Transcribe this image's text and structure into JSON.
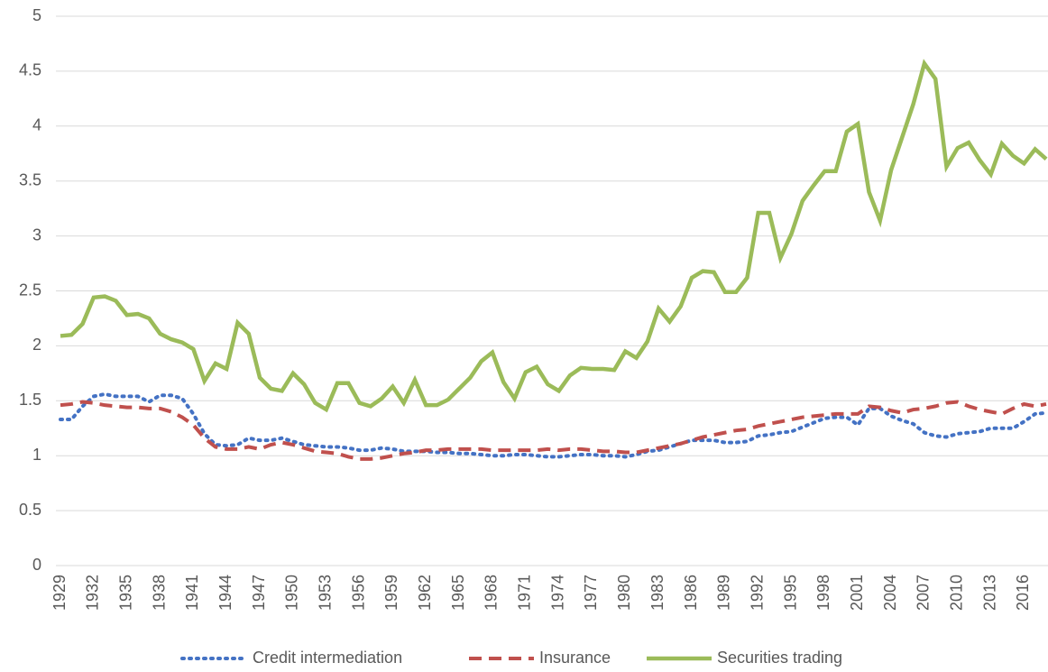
{
  "chart_data": {
    "type": "line",
    "x": [
      1929,
      1930,
      1931,
      1932,
      1933,
      1934,
      1935,
      1936,
      1937,
      1938,
      1939,
      1940,
      1941,
      1942,
      1943,
      1944,
      1945,
      1946,
      1947,
      1948,
      1949,
      1950,
      1951,
      1952,
      1953,
      1954,
      1955,
      1956,
      1957,
      1958,
      1959,
      1960,
      1961,
      1962,
      1963,
      1964,
      1965,
      1966,
      1967,
      1968,
      1969,
      1970,
      1971,
      1972,
      1973,
      1974,
      1975,
      1976,
      1977,
      1978,
      1979,
      1980,
      1981,
      1982,
      1983,
      1984,
      1985,
      1986,
      1987,
      1988,
      1989,
      1990,
      1991,
      1992,
      1993,
      1994,
      1995,
      1996,
      1997,
      1998,
      1999,
      2000,
      2001,
      2002,
      2003,
      2004,
      2005,
      2006,
      2007,
      2008,
      2009,
      2010,
      2011,
      2012,
      2013,
      2014,
      2015,
      2016,
      2017,
      2018
    ],
    "xlim": [
      1929,
      2018
    ],
    "xticks": [
      1929,
      1932,
      1935,
      1938,
      1941,
      1944,
      1947,
      1950,
      1953,
      1956,
      1959,
      1962,
      1965,
      1968,
      1971,
      1974,
      1977,
      1980,
      1983,
      1986,
      1989,
      1992,
      1995,
      1998,
      2001,
      2004,
      2007,
      2010,
      2013,
      2016
    ],
    "ylim": [
      0,
      5
    ],
    "yticks": [
      0,
      0.5,
      1,
      1.5,
      2,
      2.5,
      3,
      3.5,
      4,
      4.5,
      5
    ],
    "grid": true,
    "legend": "bottom",
    "series": [
      {
        "name": "Credit intermediation",
        "color": "#4472c4",
        "line_style": "dotted",
        "values": [
          1.33,
          1.33,
          1.45,
          1.54,
          1.56,
          1.54,
          1.54,
          1.54,
          1.49,
          1.55,
          1.55,
          1.52,
          1.38,
          1.2,
          1.1,
          1.09,
          1.1,
          1.16,
          1.14,
          1.14,
          1.16,
          1.13,
          1.1,
          1.09,
          1.08,
          1.08,
          1.07,
          1.05,
          1.05,
          1.07,
          1.06,
          1.04,
          1.04,
          1.04,
          1.03,
          1.03,
          1.02,
          1.02,
          1.01,
          1.0,
          1.0,
          1.01,
          1.01,
          1.0,
          0.99,
          0.99,
          1.0,
          1.01,
          1.01,
          1.0,
          1.0,
          0.99,
          1.01,
          1.04,
          1.05,
          1.08,
          1.11,
          1.14,
          1.14,
          1.14,
          1.12,
          1.12,
          1.13,
          1.18,
          1.19,
          1.21,
          1.22,
          1.26,
          1.3,
          1.34,
          1.35,
          1.35,
          1.28,
          1.43,
          1.43,
          1.36,
          1.32,
          1.29,
          1.21,
          1.18,
          1.17,
          1.2,
          1.21,
          1.22,
          1.25,
          1.25,
          1.25,
          1.31,
          1.38,
          1.39
        ]
      },
      {
        "name": "Insurance",
        "color": "#c0504d",
        "line_style": "dashed",
        "values": [
          1.46,
          1.47,
          1.49,
          1.48,
          1.46,
          1.45,
          1.44,
          1.44,
          1.43,
          1.43,
          1.4,
          1.35,
          1.28,
          1.16,
          1.08,
          1.06,
          1.06,
          1.08,
          1.06,
          1.1,
          1.12,
          1.1,
          1.07,
          1.04,
          1.03,
          1.02,
          0.99,
          0.97,
          0.97,
          0.98,
          1.0,
          1.02,
          1.03,
          1.05,
          1.05,
          1.06,
          1.06,
          1.06,
          1.06,
          1.05,
          1.05,
          1.05,
          1.05,
          1.05,
          1.06,
          1.05,
          1.06,
          1.06,
          1.05,
          1.04,
          1.04,
          1.03,
          1.03,
          1.05,
          1.07,
          1.09,
          1.11,
          1.14,
          1.17,
          1.19,
          1.21,
          1.23,
          1.24,
          1.27,
          1.29,
          1.31,
          1.33,
          1.35,
          1.36,
          1.37,
          1.38,
          1.38,
          1.38,
          1.45,
          1.44,
          1.41,
          1.39,
          1.42,
          1.43,
          1.45,
          1.48,
          1.49,
          1.45,
          1.42,
          1.4,
          1.38,
          1.43,
          1.47,
          1.45,
          1.47
        ]
      },
      {
        "name": "Securities trading",
        "color": "#9bbb59",
        "line_style": "solid",
        "values": [
          2.09,
          2.1,
          2.2,
          2.44,
          2.45,
          2.41,
          2.28,
          2.29,
          2.25,
          2.11,
          2.06,
          2.03,
          1.97,
          1.68,
          1.84,
          1.79,
          2.21,
          2.11,
          1.71,
          1.61,
          1.59,
          1.75,
          1.65,
          1.48,
          1.42,
          1.66,
          1.66,
          1.48,
          1.45,
          1.52,
          1.63,
          1.48,
          1.69,
          1.46,
          1.46,
          1.51,
          1.61,
          1.71,
          1.86,
          1.94,
          1.67,
          1.52,
          1.76,
          1.81,
          1.65,
          1.59,
          1.73,
          1.8,
          1.79,
          1.79,
          1.78,
          1.95,
          1.89,
          2.04,
          2.34,
          2.22,
          2.36,
          2.62,
          2.68,
          2.67,
          2.49,
          2.49,
          2.62,
          3.21,
          3.21,
          2.8,
          3.02,
          3.32,
          3.46,
          3.59,
          3.59,
          3.95,
          4.02,
          3.4,
          3.14,
          3.6,
          3.9,
          4.2,
          4.57,
          4.43,
          3.63,
          3.8,
          3.85,
          3.69,
          3.56,
          3.84,
          3.73,
          3.66,
          3.79,
          3.7
        ]
      }
    ]
  }
}
